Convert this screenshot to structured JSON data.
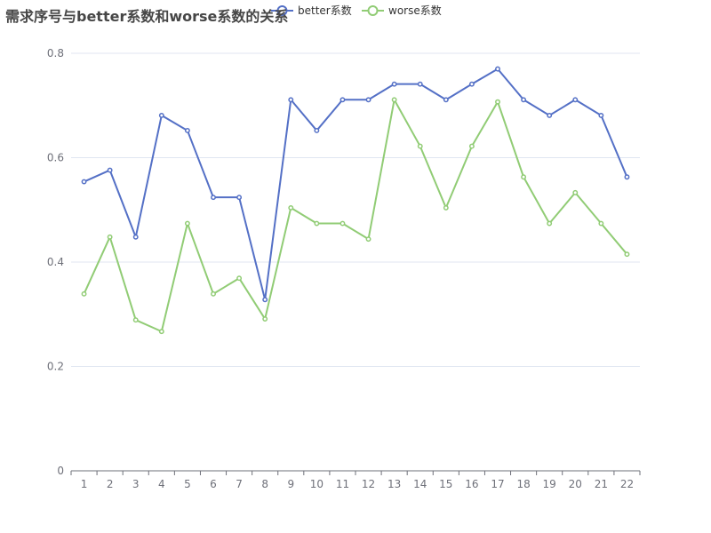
{
  "chart_data": {
    "type": "line",
    "title": "需求序号与better系数和worse系数的关系",
    "categories": [
      "1",
      "2",
      "3",
      "4",
      "5",
      "6",
      "7",
      "8",
      "9",
      "10",
      "11",
      "12",
      "13",
      "14",
      "15",
      "16",
      "17",
      "18",
      "19",
      "20",
      "21",
      "22"
    ],
    "ylim": [
      0,
      0.8
    ],
    "yticks": [
      "0",
      "0.2",
      "0.4",
      "0.6",
      "0.8"
    ],
    "grid": true,
    "legend_position": "top",
    "series": [
      {
        "name": "better系数",
        "color": "#5470c6",
        "values": [
          0.554,
          0.576,
          0.448,
          0.681,
          0.652,
          0.524,
          0.524,
          0.328,
          0.711,
          0.652,
          0.711,
          0.711,
          0.741,
          0.741,
          0.711,
          0.741,
          0.77,
          0.711,
          0.681,
          0.711,
          0.681,
          0.563
        ]
      },
      {
        "name": "worse系数",
        "color": "#91cc75",
        "values": [
          0.339,
          0.448,
          0.289,
          0.267,
          0.474,
          0.339,
          0.369,
          0.291,
          0.504,
          0.474,
          0.474,
          0.444,
          0.711,
          0.622,
          0.504,
          0.622,
          0.707,
          0.563,
          0.474,
          0.533,
          0.474,
          0.415
        ]
      }
    ]
  }
}
